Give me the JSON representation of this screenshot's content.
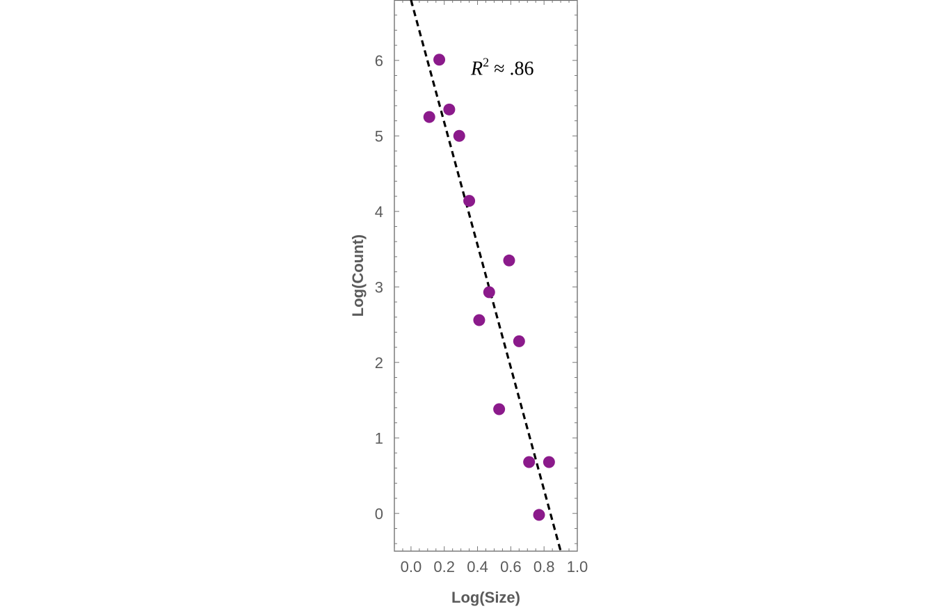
{
  "chart_data": {
    "type": "scatter",
    "title": "",
    "xlabel": "Log(Size)",
    "ylabel": "Log(Count)",
    "xlim": [
      -0.1,
      1.0
    ],
    "ylim": [
      -0.5,
      6.8
    ],
    "xticks": [
      0.0,
      0.2,
      0.4,
      0.6,
      0.8,
      1.0
    ],
    "xtick_labels": [
      "0.0",
      "0.2",
      "0.4",
      "0.6",
      "0.8",
      "1.0"
    ],
    "yticks": [
      0,
      1,
      2,
      3,
      4,
      5,
      6
    ],
    "ytick_labels": [
      "0",
      "1",
      "2",
      "3",
      "4",
      "5",
      "6"
    ],
    "grid": false,
    "series": [
      {
        "kind": "points",
        "color": "#8B1A8B",
        "points": [
          {
            "x": 0.11,
            "y": 5.25
          },
          {
            "x": 0.17,
            "y": 6.01
          },
          {
            "x": 0.23,
            "y": 5.35
          },
          {
            "x": 0.29,
            "y": 5.0
          },
          {
            "x": 0.35,
            "y": 4.14
          },
          {
            "x": 0.41,
            "y": 2.56
          },
          {
            "x": 0.47,
            "y": 2.93
          },
          {
            "x": 0.53,
            "y": 1.38
          },
          {
            "x": 0.59,
            "y": 3.35
          },
          {
            "x": 0.65,
            "y": 2.28
          },
          {
            "x": 0.71,
            "y": 0.68
          },
          {
            "x": 0.77,
            "y": -0.02
          },
          {
            "x": 0.83,
            "y": 0.68
          }
        ]
      },
      {
        "kind": "fit-line",
        "style": "dashed",
        "color": "#000000",
        "points": [
          {
            "x": 0.0,
            "y": 6.8
          },
          {
            "x": 0.9,
            "y": -0.5
          }
        ]
      }
    ],
    "annotation": {
      "text_main": "R",
      "text_sup": "2",
      "text_rest": " ≈ .86",
      "x": 0.36,
      "y": 5.9
    }
  }
}
